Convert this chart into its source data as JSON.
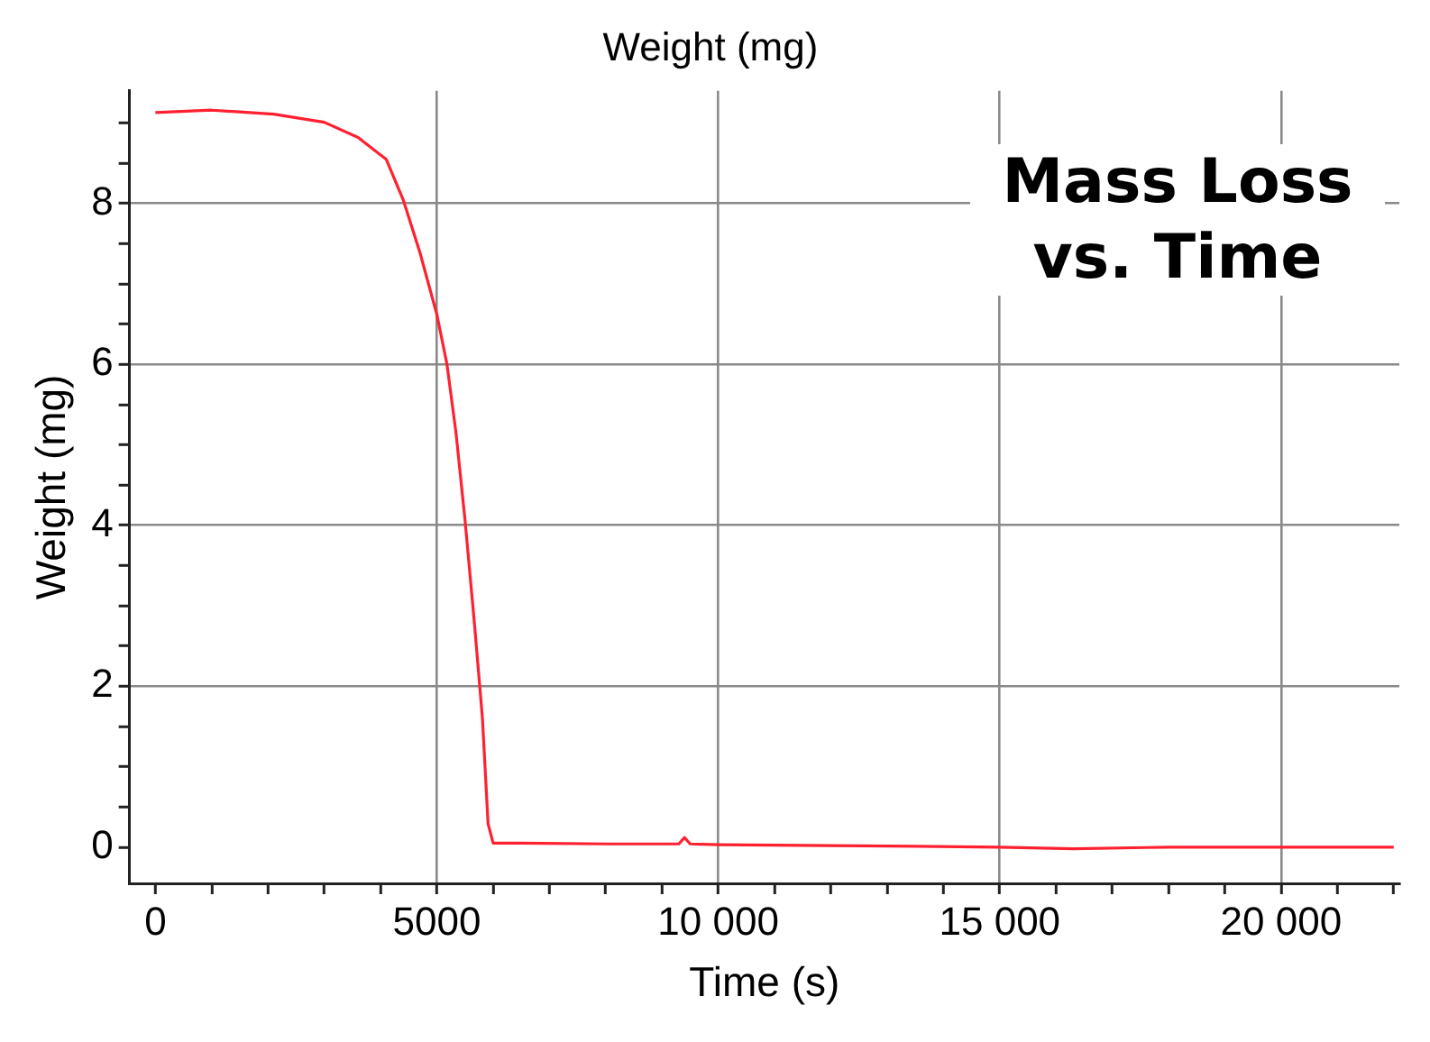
{
  "chart_data": {
    "type": "line",
    "title": "Weight (mg)",
    "xlabel": "Time (s)",
    "ylabel": "Weight (mg)",
    "annotations": [
      "Mass Loss vs. Time"
    ],
    "xlim": [
      -460,
      22100
    ],
    "ylim": [
      -0.45,
      9.4
    ],
    "xticks": [
      {
        "value": 0,
        "label": "0"
      },
      {
        "value": 1000,
        "label": null
      },
      {
        "value": 2000,
        "label": null
      },
      {
        "value": 3000,
        "label": null
      },
      {
        "value": 4000,
        "label": null
      },
      {
        "value": 5000,
        "label": "5000"
      },
      {
        "value": 6000,
        "label": null
      },
      {
        "value": 7000,
        "label": null
      },
      {
        "value": 8000,
        "label": null
      },
      {
        "value": 9000,
        "label": null
      },
      {
        "value": 10000,
        "label": "10 000"
      },
      {
        "value": 11000,
        "label": null
      },
      {
        "value": 12000,
        "label": null
      },
      {
        "value": 13000,
        "label": null
      },
      {
        "value": 14000,
        "label": null
      },
      {
        "value": 15000,
        "label": "15 000"
      },
      {
        "value": 16000,
        "label": null
      },
      {
        "value": 17000,
        "label": null
      },
      {
        "value": 18000,
        "label": null
      },
      {
        "value": 19000,
        "label": null
      },
      {
        "value": 20000,
        "label": "20 000"
      },
      {
        "value": 21000,
        "label": null
      },
      {
        "value": 22000,
        "label": null
      }
    ],
    "yticks": [
      0,
      {
        "value": 0.5,
        "label": null
      },
      {
        "value": 1,
        "label": null
      },
      {
        "value": 1.5,
        "label": null
      },
      2,
      {
        "value": 2.5,
        "label": null
      },
      {
        "value": 3,
        "label": null
      },
      {
        "value": 3.5,
        "label": null
      },
      4,
      {
        "value": 4.5,
        "label": null
      },
      {
        "value": 5,
        "label": null
      },
      {
        "value": 5.5,
        "label": null
      },
      6,
      {
        "value": 6.5,
        "label": null
      },
      {
        "value": 7,
        "label": null
      },
      {
        "value": 7.5,
        "label": null
      },
      8,
      {
        "value": 8.5,
        "label": null
      },
      {
        "value": 9,
        "label": null
      }
    ],
    "grid": true,
    "marker": "none",
    "line_style": "solid",
    "series": [
      {
        "color": "#ff2030",
        "x": [
          0,
          1000,
          2100,
          3000,
          3600,
          4100,
          4400,
          4700,
          5000,
          5180,
          5340,
          5500,
          5670,
          5810,
          5910,
          6000,
          6500,
          8000,
          9300,
          9400,
          9500,
          10000,
          12000,
          15000,
          16300,
          18000,
          20000,
          22000
        ],
        "values": [
          9.13,
          9.16,
          9.11,
          9.01,
          8.82,
          8.55,
          8.05,
          7.39,
          6.62,
          6.0,
          5.15,
          4.07,
          2.76,
          1.6,
          0.29,
          0.05,
          0.05,
          0.04,
          0.04,
          0.12,
          0.04,
          0.03,
          0.02,
          0.0,
          -0.02,
          0.0,
          0.0,
          0.0
        ]
      }
    ]
  }
}
